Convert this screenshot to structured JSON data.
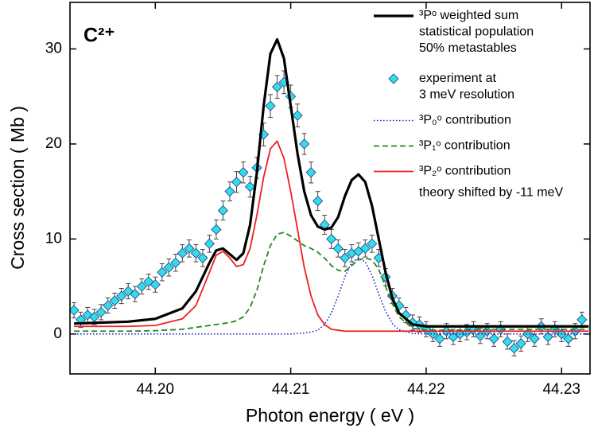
{
  "chart_data": {
    "type": "line",
    "annotation": "C²⁺",
    "note": "theory shifted by -11 meV",
    "x_label": "Photon energy  ( eV )",
    "y_label": "Cross section  ( Mb )",
    "xlim": [
      44.1937,
      44.2321
    ],
    "ylim": [
      -4.2,
      34.9
    ],
    "xticks": [
      {
        "value": 44.2,
        "label": "44.20"
      },
      {
        "value": 44.21,
        "label": "44.21"
      },
      {
        "value": 44.22,
        "label": "44.22"
      },
      {
        "value": 44.23,
        "label": "44.23"
      }
    ],
    "yticks": [
      0,
      10,
      20,
      30
    ],
    "x": [
      44.194,
      44.196,
      44.198,
      44.2,
      44.202,
      44.203,
      44.204,
      44.2045,
      44.205,
      44.2055,
      44.206,
      44.2065,
      44.207,
      44.2075,
      44.208,
      44.2085,
      44.209,
      44.2095,
      44.21,
      44.2105,
      44.211,
      44.2115,
      44.212,
      44.2125,
      44.213,
      44.2135,
      44.214,
      44.2145,
      44.215,
      44.2155,
      44.216,
      44.2165,
      44.217,
      44.2175,
      44.218,
      44.219,
      44.22,
      44.222,
      44.225,
      44.228,
      44.232
    ],
    "series": [
      {
        "name": [
          "³Pᵒ weighted sum",
          "statistical population",
          "50% metastables"
        ],
        "color": "#000000",
        "dash": "solid",
        "width": 3.2,
        "values": [
          1.1,
          1.2,
          1.3,
          1.6,
          2.7,
          4.5,
          7.5,
          8.8,
          9.0,
          8.4,
          7.8,
          8.5,
          11.5,
          17,
          24,
          29.5,
          31,
          29,
          24,
          19,
          15,
          12.5,
          11.3,
          11,
          11.2,
          12.3,
          14.5,
          16.2,
          16.8,
          16,
          13.5,
          10,
          6.5,
          3.8,
          2.2,
          1.0,
          0.8,
          0.8,
          0.8,
          0.8,
          0.8
        ]
      },
      {
        "name": [
          "experiment at",
          "3 meV resolution"
        ],
        "color": "#33dde8",
        "marker": "diamond",
        "x": [
          44.194,
          44.1945,
          44.195,
          44.1955,
          44.196,
          44.1965,
          44.197,
          44.1975,
          44.198,
          44.1985,
          44.199,
          44.1995,
          44.2,
          44.2005,
          44.201,
          44.2015,
          44.202,
          44.2025,
          44.203,
          44.2035,
          44.204,
          44.2045,
          44.205,
          44.2055,
          44.206,
          44.2065,
          44.207,
          44.2075,
          44.208,
          44.2085,
          44.209,
          44.2095,
          44.21,
          44.2105,
          44.211,
          44.2115,
          44.212,
          44.2125,
          44.213,
          44.2135,
          44.214,
          44.2145,
          44.215,
          44.2155,
          44.216,
          44.2165,
          44.217,
          44.2175,
          44.218,
          44.2185,
          44.219,
          44.2195,
          44.22,
          44.2205,
          44.221,
          44.2215,
          44.222,
          44.2225,
          44.223,
          44.2235,
          44.224,
          44.2245,
          44.225,
          44.2255,
          44.226,
          44.2265,
          44.227,
          44.2275,
          44.228,
          44.2285,
          44.229,
          44.2295,
          44.23,
          44.2305,
          44.231,
          44.2315
        ],
        "values": [
          2.5,
          1.5,
          2,
          1.8,
          2.3,
          3,
          3.5,
          4,
          4.5,
          4.2,
          5,
          5.5,
          5.2,
          6.5,
          7,
          7.5,
          8.5,
          9,
          8.5,
          8,
          9.5,
          11,
          13,
          15,
          16,
          17,
          15.5,
          17.5,
          21,
          24,
          26,
          26.5,
          25,
          23,
          20,
          17,
          14,
          11.5,
          10,
          9,
          8,
          8.5,
          8.7,
          9,
          9.5,
          8,
          6,
          4,
          3,
          2,
          1.2,
          1,
          0.5,
          0,
          -0.5,
          0.3,
          -0.3,
          0,
          0.2,
          0.5,
          -0.2,
          0.3,
          -0.5,
          0.5,
          -0.8,
          -1.5,
          -1,
          0,
          -0.5,
          0.8,
          -0.3,
          0.5,
          0,
          -0.5,
          0.3,
          1.5
        ],
        "errors": [
          0.8,
          0.8,
          0.8,
          0.8,
          0.8,
          0.8,
          0.8,
          0.8,
          0.8,
          0.8,
          0.8,
          0.8,
          0.8,
          0.9,
          0.9,
          0.9,
          0.9,
          0.9,
          0.9,
          0.9,
          0.9,
          1.0,
          1.0,
          1.0,
          1.1,
          1.1,
          1.1,
          1.1,
          1.2,
          1.2,
          1.2,
          1.2,
          1.2,
          1.2,
          1.1,
          1.1,
          1.0,
          1.0,
          1.0,
          0.9,
          0.9,
          0.9,
          0.9,
          0.9,
          0.9,
          0.9,
          0.9,
          0.8,
          0.8,
          0.8,
          0.8,
          0.8,
          0.8,
          0.8,
          0.8,
          0.8,
          0.8,
          0.8,
          0.8,
          0.8,
          0.8,
          0.8,
          0.8,
          0.8,
          0.8,
          0.8,
          0.8,
          0.8,
          0.8,
          0.8,
          0.8,
          0.8,
          0.8,
          0.8,
          0.8,
          0.8
        ]
      },
      {
        "name": "³P₀ᵒ contribution",
        "color": "#1020d0",
        "dash": "dotted",
        "width": 1.6,
        "values": [
          0,
          0,
          0,
          0,
          0,
          0,
          0,
          0,
          0,
          0,
          0,
          0,
          0,
          0,
          0,
          0,
          0,
          0,
          0,
          0.05,
          0.1,
          0.2,
          0.4,
          1.0,
          2.2,
          4.0,
          6.0,
          7.5,
          8.0,
          7.6,
          6.2,
          4.2,
          2.4,
          1.1,
          0.45,
          0.05,
          0,
          0,
          0,
          0,
          0
        ]
      },
      {
        "name": "³P₁ᵒ contribution",
        "color": "#1f8a1f",
        "dash": "dashed",
        "width": 1.8,
        "values": [
          0.3,
          0.3,
          0.3,
          0.35,
          0.5,
          0.7,
          0.9,
          1.0,
          1.1,
          1.2,
          1.4,
          1.8,
          2.8,
          4.6,
          7.2,
          9.3,
          10.5,
          10.7,
          10.3,
          9.8,
          9.3,
          9.0,
          8.6,
          8.0,
          7.2,
          6.7,
          6.6,
          7.2,
          7.8,
          8.0,
          7.8,
          6.8,
          5.0,
          3.2,
          1.8,
          0.6,
          0.4,
          0.4,
          0.5,
          0.5,
          0.5
        ]
      },
      {
        "name": "³P₂ᵒ contribution",
        "color": "#ee2020",
        "dash": "solid",
        "width": 1.8,
        "values": [
          0.8,
          0.8,
          0.8,
          0.9,
          1.6,
          3.0,
          6.5,
          8.3,
          8.7,
          8.0,
          7.1,
          7.3,
          9.0,
          12.5,
          16.5,
          19.5,
          20.3,
          18.5,
          15,
          11,
          7,
          4,
          2,
          1,
          0.5,
          0.4,
          0.3,
          0.3,
          0.3,
          0.3,
          0.3,
          0.3,
          0.3,
          0.3,
          0.3,
          0.3,
          0.3,
          0.3,
          0.3,
          0.3,
          0.3
        ]
      }
    ]
  }
}
